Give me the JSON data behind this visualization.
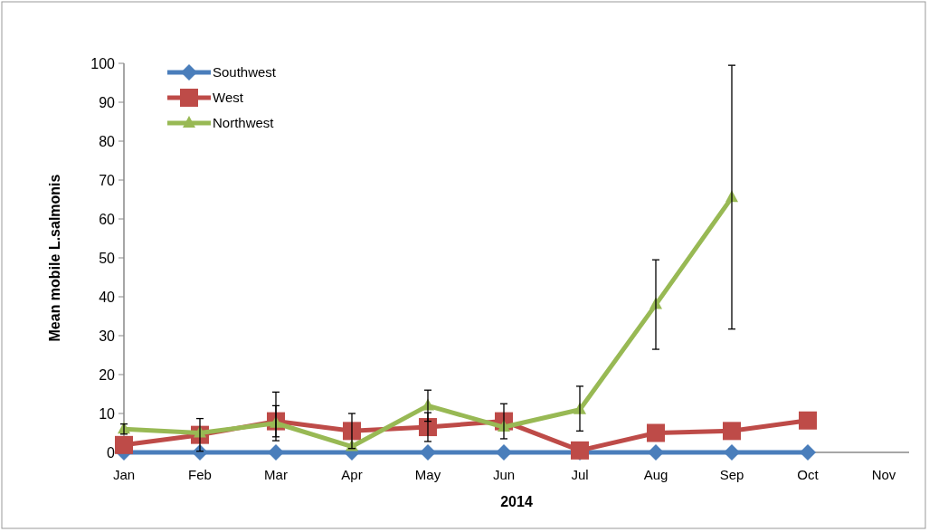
{
  "chart_data": {
    "type": "line",
    "xlabel": "2014",
    "ylabel": "Mean mobile L.salmonis",
    "categories": [
      "Jan",
      "Feb",
      "Mar",
      "Apr",
      "May",
      "Jun",
      "Jul",
      "Aug",
      "Sep",
      "Oct",
      "Nov"
    ],
    "ylim": [
      0,
      100
    ],
    "yticks": [
      0,
      10,
      20,
      30,
      40,
      50,
      60,
      70,
      80,
      90,
      100
    ],
    "grid": false,
    "legend": "top left",
    "series": [
      {
        "name": "Southwest",
        "color": "#4a7ebb",
        "marker": "diamond",
        "values": [
          0,
          0,
          0,
          0,
          0,
          0,
          0,
          0,
          0,
          0,
          null
        ]
      },
      {
        "name": "West",
        "color": "#be4b48",
        "marker": "square",
        "values": [
          1.9,
          4.5,
          8,
          5.5,
          6.5,
          8,
          0.5,
          5,
          5.5,
          8.2,
          null
        ],
        "errors": [
          null,
          [
            0.3,
            8.7
          ],
          [
            4,
            12
          ],
          [
            1,
            10
          ],
          [
            2.8,
            10.2
          ],
          [
            3.5,
            12.5
          ],
          null,
          null,
          null,
          null,
          null
        ]
      },
      {
        "name": "Northwest",
        "color": "#98b954",
        "marker": "triangle",
        "values": [
          6,
          5,
          7.5,
          1.5,
          12,
          6.5,
          11,
          38,
          65.5,
          null,
          null
        ],
        "errors": [
          [
            4.7,
            7.3
          ],
          null,
          [
            3,
            15.5
          ],
          null,
          [
            8,
            16
          ],
          null,
          [
            5.5,
            17
          ],
          [
            26.5,
            49.5
          ],
          [
            31.7,
            99.5
          ],
          null,
          null
        ]
      }
    ]
  }
}
